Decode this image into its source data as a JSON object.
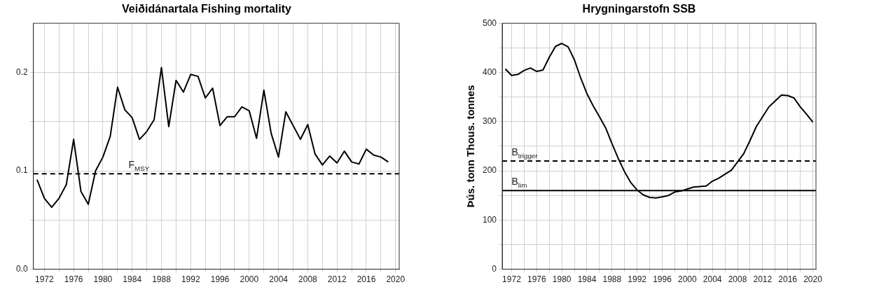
{
  "chart_data": [
    {
      "type": "line",
      "title": "Veiðidánartala Fishing mortality",
      "grid": true,
      "legend": false,
      "marker": "none",
      "line_style": "solid",
      "xlim": [
        1970.5,
        2020.5
      ],
      "xticks": [
        1972,
        {
          "value": 1974,
          "label": null
        },
        1976,
        {
          "value": 1978,
          "label": null
        },
        1980,
        {
          "value": 1982,
          "label": null
        },
        1984,
        {
          "value": 1986,
          "label": null
        },
        1988,
        {
          "value": 1990,
          "label": null
        },
        1992,
        {
          "value": 1994,
          "label": null
        },
        1996,
        {
          "value": 1998,
          "label": null
        },
        2000,
        {
          "value": 2002,
          "label": null
        },
        2004,
        {
          "value": 2006,
          "label": null
        },
        2008,
        {
          "value": 2010,
          "label": null
        },
        2012,
        {
          "value": 2014,
          "label": null
        },
        2016,
        {
          "value": 2018,
          "label": null
        },
        2020
      ],
      "ylim": [
        0,
        0.25
      ],
      "yticks": [
        {
          "value": 0,
          "label": "0.0"
        },
        {
          "value": 0.05,
          "label": null
        },
        {
          "value": 0.1,
          "label": "0.1"
        },
        {
          "value": 0.15,
          "label": null
        },
        {
          "value": 0.2,
          "label": "0.2"
        }
      ],
      "x": [
        1971,
        1972,
        1973,
        1974,
        1975,
        1976,
        1977,
        1978,
        1979,
        1980,
        1981,
        1982,
        1983,
        1984,
        1985,
        1986,
        1987,
        1988,
        1989,
        1990,
        1991,
        1992,
        1993,
        1994,
        1995,
        1996,
        1997,
        1998,
        1999,
        2000,
        2001,
        2002,
        2003,
        2004,
        2005,
        2006,
        2007,
        2008,
        2009,
        2010,
        2011,
        2012,
        2013,
        2014,
        2015,
        2016,
        2017,
        2018,
        2019
      ],
      "series": [
        {
          "color": "#000000",
          "values": [
            0.091,
            0.072,
            0.063,
            0.072,
            0.086,
            0.132,
            0.079,
            0.066,
            0.1,
            0.114,
            0.135,
            0.185,
            0.162,
            0.154,
            0.132,
            0.14,
            0.152,
            0.205,
            0.145,
            0.192,
            0.18,
            0.198,
            0.196,
            0.174,
            0.184,
            0.146,
            0.155,
            0.155,
            0.165,
            0.161,
            0.133,
            0.182,
            0.138,
            0.114,
            0.16,
            0.146,
            0.132,
            0.147,
            0.117,
            0.106,
            0.115,
            0.108,
            0.12,
            0.109,
            0.107,
            0.122,
            0.116,
            0.114,
            0.109
          ]
        }
      ],
      "ref_lines": [
        {
          "axis": "y",
          "value": 0.097,
          "color": "#000000",
          "line_style": "dashed",
          "label": "F$_{MSY}$"
        }
      ]
    },
    {
      "type": "line",
      "title": "Hrygningarstofn SSB",
      "ylabel": "Þús. tonn Thous. tonnes",
      "grid": true,
      "legend": false,
      "marker": "none",
      "line_style": "solid",
      "xlim": [
        1970.5,
        2020.5
      ],
      "xticks": [
        1972,
        {
          "value": 1974,
          "label": null
        },
        1976,
        {
          "value": 1978,
          "label": null
        },
        1980,
        {
          "value": 1982,
          "label": null
        },
        1984,
        {
          "value": 1986,
          "label": null
        },
        1988,
        {
          "value": 1990,
          "label": null
        },
        1992,
        {
          "value": 1994,
          "label": null
        },
        1996,
        {
          "value": 1998,
          "label": null
        },
        2000,
        {
          "value": 2002,
          "label": null
        },
        2004,
        {
          "value": 2006,
          "label": null
        },
        2008,
        {
          "value": 2010,
          "label": null
        },
        2012,
        {
          "value": 2014,
          "label": null
        },
        2016,
        {
          "value": 2018,
          "label": null
        },
        2020
      ],
      "ylim": [
        0,
        500
      ],
      "yticks": [
        0,
        {
          "value": 50,
          "label": null
        },
        100,
        {
          "value": 150,
          "label": null
        },
        200,
        {
          "value": 250,
          "label": null
        },
        300,
        {
          "value": 350,
          "label": null
        },
        400,
        {
          "value": 450,
          "label": null
        },
        500
      ],
      "x": [
        1971,
        1972,
        1973,
        1974,
        1975,
        1976,
        1977,
        1978,
        1979,
        1980,
        1981,
        1982,
        1983,
        1984,
        1985,
        1986,
        1987,
        1988,
        1989,
        1990,
        1991,
        1992,
        1993,
        1994,
        1995,
        1996,
        1997,
        1998,
        1999,
        2000,
        2001,
        2002,
        2003,
        2004,
        2005,
        2006,
        2007,
        2008,
        2009,
        2010,
        2011,
        2012,
        2013,
        2014,
        2015,
        2016,
        2017,
        2018,
        2019,
        2020
      ],
      "series": [
        {
          "color": "#000000",
          "values": [
            407,
            394,
            396,
            404,
            409,
            402,
            405,
            431,
            453,
            459,
            452,
            426,
            389,
            357,
            332,
            310,
            287,
            255,
            225,
            198,
            176,
            161,
            151,
            146,
            145,
            147,
            150,
            157,
            159,
            163,
            167,
            168,
            169,
            179,
            185,
            193,
            201,
            218,
            235,
            262,
            290,
            310,
            330,
            342,
            354,
            353,
            348,
            330,
            315,
            299
          ]
        }
      ],
      "ref_lines": [
        {
          "axis": "y",
          "value": 220,
          "color": "#000000",
          "line_style": "dashed",
          "label": "B$_{trigger}$"
        },
        {
          "axis": "y",
          "value": 160,
          "color": "#000000",
          "line_style": "solid",
          "label": "B$_{lim}$"
        }
      ]
    }
  ]
}
